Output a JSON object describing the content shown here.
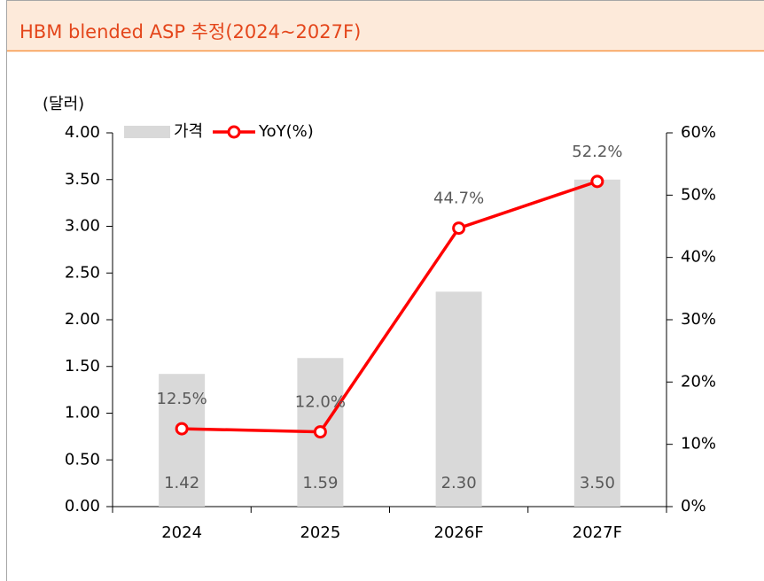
{
  "chart_data": {
    "type": "bar",
    "title": "HBM blended ASP 추정(2024~2027F)",
    "y_label": "(달러)",
    "categories": [
      "2024",
      "2025",
      "2026F",
      "2027F"
    ],
    "series": [
      {
        "name": "가격",
        "type": "bar",
        "color": "#d9d9d9",
        "values": [
          1.42,
          1.59,
          2.3,
          3.5
        ],
        "value_labels": [
          "1.42",
          "1.59",
          "2.30",
          "3.50"
        ]
      },
      {
        "name": "YoY(%)",
        "type": "line",
        "axis": "y2",
        "color": "#ff0000",
        "values": [
          12.5,
          12.0,
          44.7,
          52.2
        ],
        "value_labels": [
          "12.5%",
          "12.0%",
          "44.7%",
          "52.2%"
        ]
      }
    ],
    "ylim": [
      0,
      4
    ],
    "yticks": [
      {
        "value": 0,
        "label": "0.00"
      },
      {
        "value": 0.5,
        "label": "0.50"
      },
      {
        "value": 1,
        "label": "1.00"
      },
      {
        "value": 1.5,
        "label": "1.50"
      },
      {
        "value": 2,
        "label": "2.00"
      },
      {
        "value": 2.5,
        "label": "2.50"
      },
      {
        "value": 3,
        "label": "3.00"
      },
      {
        "value": 3.5,
        "label": "3.50"
      },
      {
        "value": 4,
        "label": "4.00"
      }
    ],
    "y2lim": [
      0,
      60
    ],
    "y2ticks": [
      {
        "value": 0,
        "label": "0%"
      },
      {
        "value": 10,
        "label": "10%"
      },
      {
        "value": 20,
        "label": "20%"
      },
      {
        "value": 30,
        "label": "30%"
      },
      {
        "value": 40,
        "label": "40%"
      },
      {
        "value": 50,
        "label": "50%"
      },
      {
        "value": 60,
        "label": "60%"
      }
    ],
    "grid": false,
    "legend": "top"
  }
}
